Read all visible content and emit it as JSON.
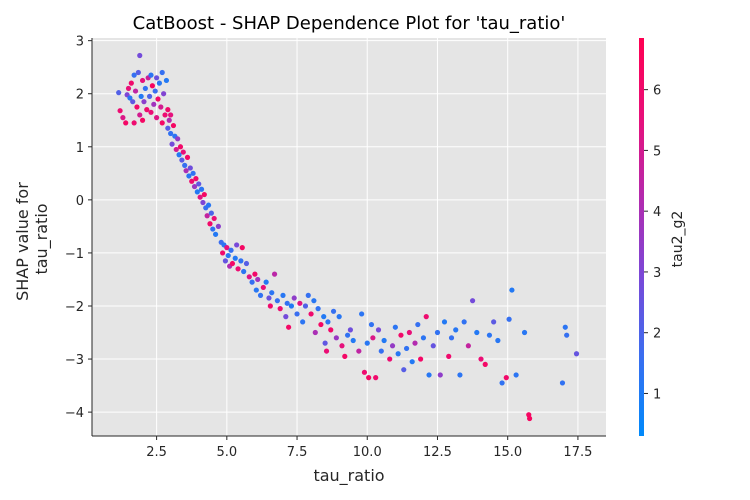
{
  "chart_data": {
    "type": "scatter",
    "title": "CatBoost - SHAP Dependence Plot for 'tau_ratio'",
    "xlabel": "tau_ratio",
    "ylabel_lines": [
      "SHAP value for",
      "tau_ratio"
    ],
    "xlim": [
      0.2,
      18.5
    ],
    "ylim": [
      -4.45,
      3.05
    ],
    "xticks": [
      2.5,
      5.0,
      7.5,
      10.0,
      12.5,
      15.0,
      17.5
    ],
    "xtick_labels": [
      "2.5",
      "5.0",
      "7.5",
      "10.0",
      "12.5",
      "15.0",
      "17.5"
    ],
    "yticks": [
      3,
      2,
      1,
      0,
      -1,
      -2,
      -3,
      -4
    ],
    "ytick_labels": [
      "3",
      "2",
      "1",
      "0",
      "−1",
      "−2",
      "−3",
      "−4"
    ],
    "grid": true,
    "background": "#e5e5e5",
    "colorbar": {
      "label": "tau2_g2",
      "range": [
        0.3,
        6.85
      ],
      "ticks": [
        1,
        2,
        3,
        4,
        5,
        6
      ],
      "tick_labels": [
        "1",
        "2",
        "3",
        "4",
        "5",
        "6"
      ],
      "colors": [
        "#008afb",
        "#3a6ef0",
        "#7a48d8",
        "#b42aae",
        "#e8107a",
        "#ff0052"
      ]
    },
    "points": [
      [
        1.15,
        2.02,
        2.1
      ],
      [
        1.2,
        1.68,
        5.8
      ],
      [
        1.3,
        1.55,
        5.2
      ],
      [
        1.4,
        1.45,
        6.2
      ],
      [
        1.45,
        1.98,
        3.0
      ],
      [
        1.5,
        2.1,
        5.6
      ],
      [
        1.55,
        1.92,
        1.2
      ],
      [
        1.6,
        2.2,
        6.0
      ],
      [
        1.65,
        1.85,
        2.4
      ],
      [
        1.7,
        1.45,
        5.9
      ],
      [
        1.7,
        2.35,
        1.5
      ],
      [
        1.75,
        2.05,
        4.5
      ],
      [
        1.8,
        1.75,
        6.1
      ],
      [
        1.85,
        2.4,
        2.2
      ],
      [
        1.9,
        1.6,
        5.0
      ],
      [
        1.9,
        2.72,
        2.8
      ],
      [
        1.95,
        1.95,
        1.1
      ],
      [
        2.0,
        2.25,
        5.5
      ],
      [
        2.0,
        1.5,
        6.3
      ],
      [
        2.05,
        1.85,
        3.3
      ],
      [
        2.1,
        2.1,
        1.4
      ],
      [
        2.15,
        1.7,
        6.0
      ],
      [
        2.2,
        2.3,
        4.8
      ],
      [
        2.25,
        1.95,
        2.0
      ],
      [
        2.3,
        1.65,
        5.7
      ],
      [
        2.3,
        2.35,
        1.3
      ],
      [
        2.35,
        2.15,
        6.4
      ],
      [
        2.4,
        1.8,
        3.8
      ],
      [
        2.45,
        2.05,
        1.6
      ],
      [
        2.5,
        1.55,
        5.3
      ],
      [
        2.5,
        2.3,
        2.6
      ],
      [
        2.55,
        1.9,
        6.1
      ],
      [
        2.6,
        2.2,
        1.2
      ],
      [
        2.65,
        1.75,
        5.0
      ],
      [
        2.7,
        2.4,
        1.5
      ],
      [
        2.7,
        1.45,
        6.2
      ],
      [
        2.75,
        2.0,
        3.1
      ],
      [
        2.8,
        1.6,
        5.8
      ],
      [
        2.85,
        2.25,
        1.1
      ],
      [
        2.9,
        1.35,
        2.2
      ],
      [
        2.9,
        1.7,
        6.0
      ],
      [
        2.95,
        1.5,
        4.2
      ],
      [
        3.0,
        1.25,
        1.4
      ],
      [
        3.0,
        1.6,
        5.5
      ],
      [
        3.05,
        1.05,
        2.8
      ],
      [
        3.1,
        1.4,
        6.3
      ],
      [
        3.15,
        1.2,
        1.3
      ],
      [
        3.2,
        0.95,
        5.0
      ],
      [
        3.25,
        1.15,
        3.5
      ],
      [
        3.3,
        0.85,
        1.1
      ],
      [
        3.35,
        1.0,
        6.1
      ],
      [
        3.4,
        0.75,
        2.3
      ],
      [
        3.45,
        0.9,
        5.6
      ],
      [
        3.5,
        0.65,
        1.5
      ],
      [
        3.55,
        0.55,
        4.0
      ],
      [
        3.6,
        0.8,
        6.2
      ],
      [
        3.65,
        0.45,
        1.2
      ],
      [
        3.7,
        0.6,
        2.7
      ],
      [
        3.75,
        0.35,
        5.9
      ],
      [
        3.8,
        0.5,
        1.4
      ],
      [
        3.85,
        0.25,
        3.6
      ],
      [
        3.9,
        0.4,
        6.0
      ],
      [
        3.95,
        0.15,
        1.1
      ],
      [
        4.0,
        0.3,
        2.4
      ],
      [
        4.05,
        0.05,
        5.4
      ],
      [
        4.1,
        0.2,
        1.3
      ],
      [
        4.15,
        -0.05,
        3.0
      ],
      [
        4.2,
        0.1,
        6.3
      ],
      [
        4.25,
        -0.15,
        1.5
      ],
      [
        4.3,
        -0.3,
        4.6
      ],
      [
        4.35,
        -0.1,
        1.2
      ],
      [
        4.4,
        -0.45,
        6.1
      ],
      [
        4.45,
        -0.25,
        2.0
      ],
      [
        4.5,
        -0.55,
        1.4
      ],
      [
        4.55,
        -0.35,
        5.7
      ],
      [
        4.6,
        -0.65,
        1.1
      ],
      [
        4.7,
        -0.5,
        3.3
      ],
      [
        4.8,
        -0.8,
        1.6
      ],
      [
        4.85,
        -1.0,
        6.0
      ],
      [
        4.9,
        -0.85,
        1.3
      ],
      [
        4.95,
        -1.15,
        2.5
      ],
      [
        5.0,
        -0.9,
        5.5
      ],
      [
        5.05,
        -1.05,
        1.2
      ],
      [
        5.1,
        -1.25,
        4.1
      ],
      [
        5.15,
        -0.95,
        1.5
      ],
      [
        5.2,
        -1.2,
        6.2
      ],
      [
        5.3,
        -1.1,
        1.1
      ],
      [
        5.35,
        -0.85,
        2.9
      ],
      [
        5.4,
        -1.3,
        5.8
      ],
      [
        5.5,
        -1.15,
        1.4
      ],
      [
        5.55,
        -0.9,
        6.3
      ],
      [
        5.6,
        -1.35,
        1.3
      ],
      [
        5.7,
        -1.2,
        2.2
      ],
      [
        5.8,
        -1.45,
        5.3
      ],
      [
        5.9,
        -1.55,
        1.5
      ],
      [
        6.0,
        -1.4,
        6.1
      ],
      [
        6.05,
        -1.7,
        1.2
      ],
      [
        6.1,
        -1.5,
        3.8
      ],
      [
        6.2,
        -1.8,
        1.4
      ],
      [
        6.3,
        -1.65,
        5.6
      ],
      [
        6.4,
        -1.55,
        1.1
      ],
      [
        6.5,
        -1.85,
        2.6
      ],
      [
        6.55,
        -2.0,
        6.0
      ],
      [
        6.6,
        -1.75,
        1.3
      ],
      [
        6.7,
        -1.4,
        4.4
      ],
      [
        6.8,
        -1.9,
        1.5
      ],
      [
        6.9,
        -2.05,
        5.9
      ],
      [
        7.0,
        -1.8,
        1.2
      ],
      [
        7.1,
        -2.2,
        2.8
      ],
      [
        7.15,
        -1.95,
        1.4
      ],
      [
        7.2,
        -2.4,
        6.2
      ],
      [
        7.3,
        -2.0,
        1.1
      ],
      [
        7.4,
        -1.85,
        3.4
      ],
      [
        7.5,
        -2.15,
        1.6
      ],
      [
        7.6,
        -1.95,
        5.4
      ],
      [
        7.7,
        -2.3,
        1.3
      ],
      [
        7.8,
        -2.0,
        2.1
      ],
      [
        7.9,
        -1.8,
        1.5
      ],
      [
        8.0,
        -2.15,
        6.0
      ],
      [
        8.1,
        -1.9,
        1.2
      ],
      [
        8.15,
        -2.5,
        4.0
      ],
      [
        8.25,
        -2.05,
        1.4
      ],
      [
        8.35,
        -2.35,
        6.3
      ],
      [
        8.45,
        -2.2,
        1.1
      ],
      [
        8.5,
        -2.7,
        2.4
      ],
      [
        8.55,
        -2.85,
        5.7
      ],
      [
        8.6,
        -2.3,
        1.3
      ],
      [
        8.7,
        -2.45,
        6.1
      ],
      [
        8.8,
        -2.1,
        1.5
      ],
      [
        8.9,
        -2.6,
        3.6
      ],
      [
        9.0,
        -2.2,
        1.2
      ],
      [
        9.1,
        -2.75,
        5.5
      ],
      [
        9.2,
        -2.95,
        6.2
      ],
      [
        9.3,
        -2.55,
        1.4
      ],
      [
        9.4,
        -2.45,
        2.7
      ],
      [
        9.5,
        -2.65,
        1.1
      ],
      [
        9.7,
        -2.85,
        4.5
      ],
      [
        9.8,
        -2.15,
        1.3
      ],
      [
        9.9,
        -3.25,
        5.9
      ],
      [
        10.0,
        -2.7,
        1.2
      ],
      [
        10.05,
        -3.35,
        6.3
      ],
      [
        10.15,
        -2.35,
        1.4
      ],
      [
        10.2,
        -2.6,
        5.2
      ],
      [
        10.3,
        -3.35,
        6.0
      ],
      [
        10.4,
        -2.45,
        2.9
      ],
      [
        10.5,
        -2.85,
        1.5
      ],
      [
        10.6,
        -2.65,
        1.1
      ],
      [
        10.8,
        -3.0,
        5.8
      ],
      [
        10.9,
        -2.75,
        3.5
      ],
      [
        11.0,
        -2.4,
        1.3
      ],
      [
        11.1,
        -2.9,
        1.2
      ],
      [
        11.2,
        -2.55,
        6.1
      ],
      [
        11.3,
        -3.2,
        2.2
      ],
      [
        11.4,
        -2.8,
        1.4
      ],
      [
        11.5,
        -2.5,
        5.6
      ],
      [
        11.6,
        -3.05,
        1.1
      ],
      [
        11.7,
        -2.7,
        4.2
      ],
      [
        11.8,
        -2.35,
        1.5
      ],
      [
        11.9,
        -3.0,
        6.2
      ],
      [
        12.0,
        -2.6,
        1.3
      ],
      [
        12.1,
        -2.2,
        5.9
      ],
      [
        12.2,
        -3.3,
        1.2
      ],
      [
        12.35,
        -2.75,
        2.5
      ],
      [
        12.5,
        -2.5,
        1.4
      ],
      [
        12.6,
        -3.3,
        3.4
      ],
      [
        12.75,
        -2.3,
        1.1
      ],
      [
        12.9,
        -2.95,
        6.0
      ],
      [
        13.0,
        -2.6,
        1.5
      ],
      [
        13.15,
        -2.45,
        1.2
      ],
      [
        13.3,
        -3.3,
        1.3
      ],
      [
        13.45,
        -2.3,
        1.4
      ],
      [
        13.6,
        -2.75,
        4.6
      ],
      [
        13.75,
        -1.9,
        2.8
      ],
      [
        13.9,
        -2.5,
        1.1
      ],
      [
        14.05,
        -3.0,
        5.7
      ],
      [
        14.2,
        -3.1,
        6.2
      ],
      [
        14.35,
        -2.55,
        1.3
      ],
      [
        14.5,
        -2.3,
        2.3
      ],
      [
        14.65,
        -2.65,
        1.2
      ],
      [
        14.8,
        -3.45,
        1.4
      ],
      [
        14.95,
        -3.35,
        6.1
      ],
      [
        15.05,
        -2.25,
        1.5
      ],
      [
        15.15,
        -1.7,
        1.1
      ],
      [
        15.3,
        -3.3,
        1.3
      ],
      [
        15.6,
        -2.5,
        1.2
      ],
      [
        15.75,
        -4.05,
        6.3
      ],
      [
        15.78,
        -4.12,
        6.4
      ],
      [
        16.95,
        -3.45,
        1.4
      ],
      [
        17.05,
        -2.4,
        1.3
      ],
      [
        17.1,
        -2.55,
        1.5
      ],
      [
        17.45,
        -2.9,
        2.5
      ]
    ]
  }
}
